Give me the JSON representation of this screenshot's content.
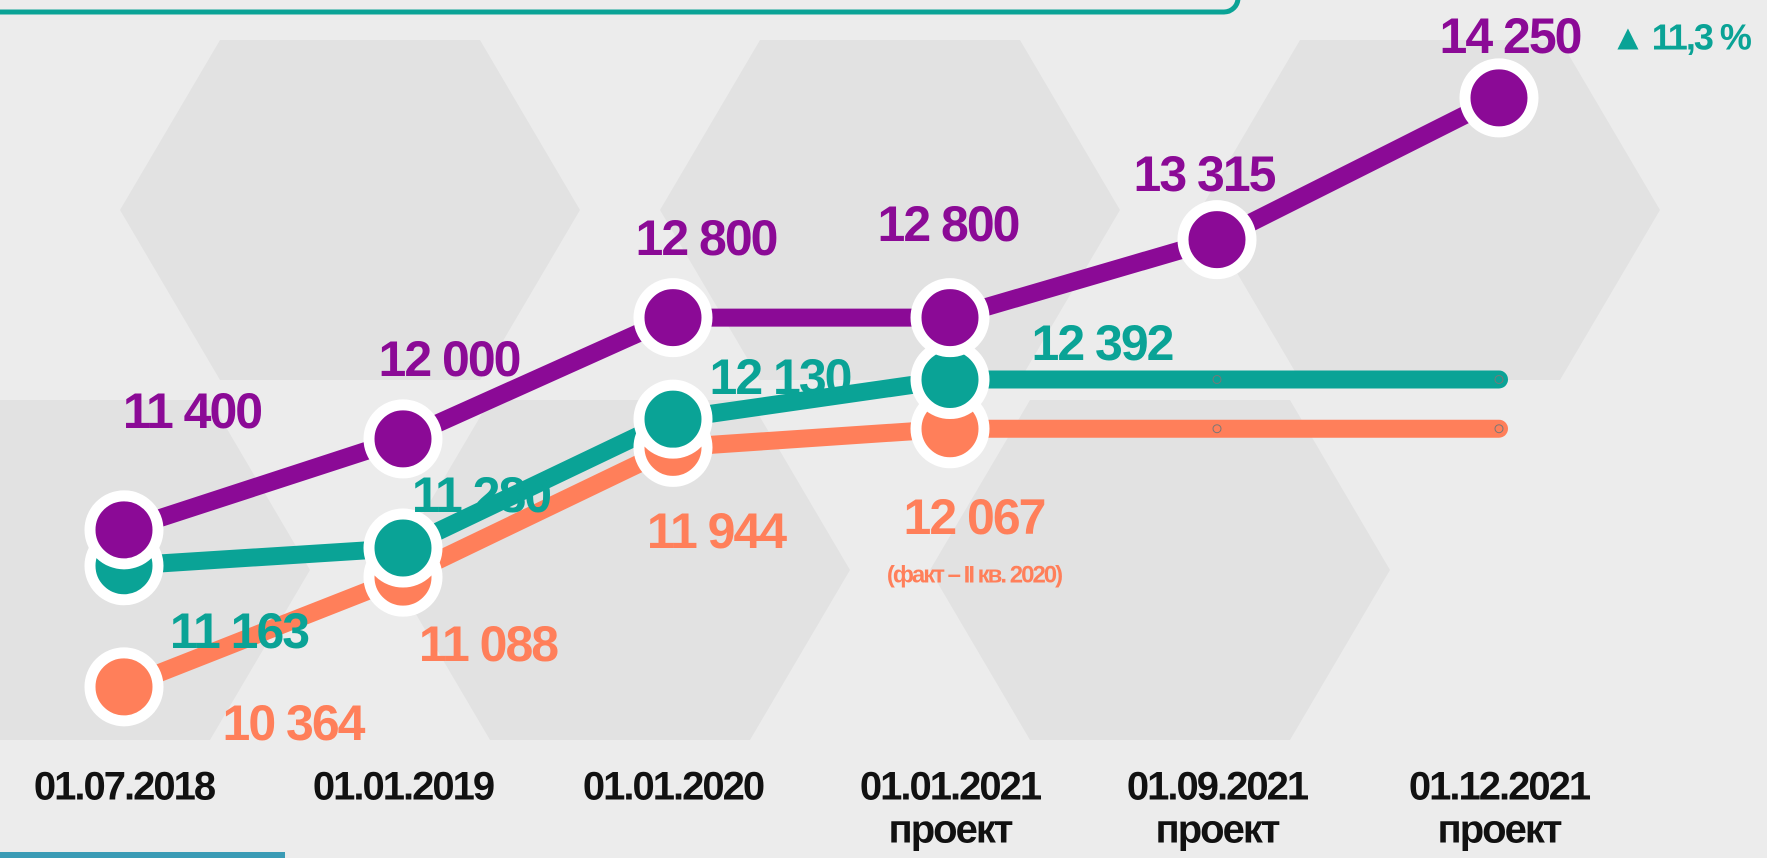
{
  "chart_data": {
    "type": "line",
    "categories": [
      "01.07.2018",
      "01.01.2019",
      "01.01.2020",
      "01.01.2021",
      "01.09.2021",
      "01.12.2021"
    ],
    "category_notes": [
      null,
      null,
      null,
      "проект",
      "проект",
      "проект"
    ],
    "ylim": [
      10000,
      14500
    ],
    "series": [
      {
        "name": "purple",
        "color": "#8b0a96",
        "values": [
          11400,
          12000,
          12800,
          12800,
          13315,
          14250
        ],
        "value_labels": [
          "11 400",
          "12 000",
          "12 800",
          "12 800",
          "13 315",
          "14 250"
        ]
      },
      {
        "name": "teal",
        "color": "#0aa396",
        "values": [
          11163,
          11280,
          12130,
          12392,
          12392,
          12392
        ],
        "value_labels": [
          "11 163",
          "11 280",
          "12 130",
          "12 392",
          null,
          null
        ]
      },
      {
        "name": "orange",
        "color": "#ff7f5a",
        "values": [
          10364,
          11088,
          11944,
          12067,
          12067,
          12067
        ],
        "value_labels": [
          "10 364",
          "11 088",
          "11 944",
          "12 067",
          null,
          null
        ]
      }
    ],
    "annotations": [
      "(факт – II кв. 2020)",
      "▲ 11,3 %"
    ]
  }
}
